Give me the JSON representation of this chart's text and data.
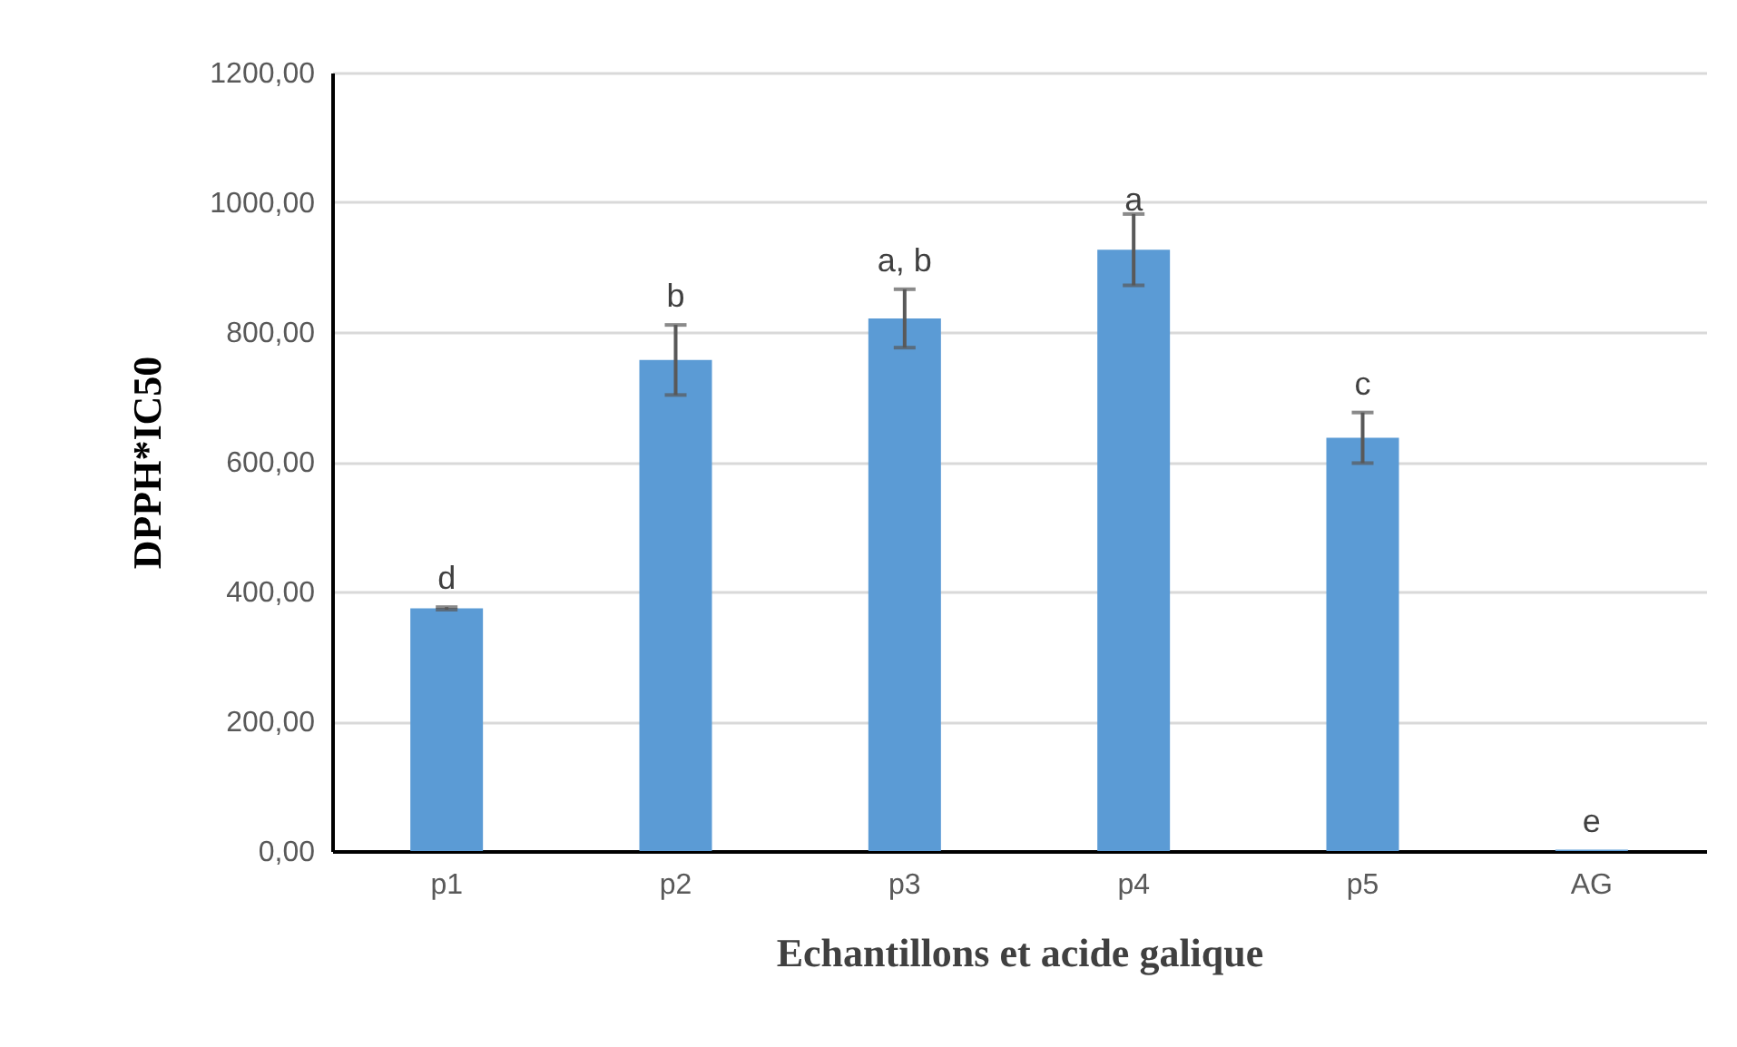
{
  "chart_data": {
    "type": "bar",
    "xlabel": "Echantillons et acide galique",
    "ylabel": "DPPH*IC50",
    "categories": [
      "p1",
      "p2",
      "p3",
      "p4",
      "p5",
      "AG"
    ],
    "values": [
      374,
      757,
      821,
      927,
      637,
      2
    ],
    "errors": [
      2,
      54,
      45,
      55,
      39,
      null
    ],
    "color": "#5b9bd5",
    "ylim": [
      0,
      1200
    ],
    "yticks": [
      {
        "value": 0,
        "label": "0,00"
      },
      {
        "value": 200,
        "label": "200,00"
      },
      {
        "value": 400,
        "label": "400,00"
      },
      {
        "value": 600,
        "label": "600,00"
      },
      {
        "value": 800,
        "label": "800,00"
      },
      {
        "value": 1000,
        "label": "1000,00"
      },
      {
        "value": 1200,
        "label": "1200,00"
      }
    ],
    "grid": "y",
    "annotations": [
      {
        "text": "d",
        "x": "p1",
        "y": 376
      },
      {
        "text": "b",
        "x": "p2",
        "y": 811
      },
      {
        "text": "a, b",
        "x": "p3",
        "y": 866
      },
      {
        "text": "a",
        "x": "p4",
        "y": 960
      },
      {
        "text": "c",
        "x": "p5",
        "y": 676
      },
      {
        "text": "e",
        "x": "AG",
        "y": 2
      }
    ]
  }
}
